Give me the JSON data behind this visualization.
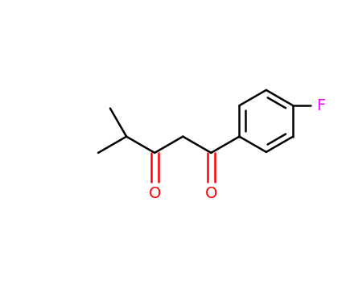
{
  "background_color": "#ffffff",
  "bond_color": "#000000",
  "oxygen_color": "#ff0000",
  "fluorine_color": "#ff00ff",
  "bond_width": 1.8,
  "font_size_atoms": 14,
  "fig_width": 4.3,
  "fig_height": 3.74,
  "dpi": 100,
  "xlim": [
    -1.6,
    2.8
  ],
  "ylim": [
    -1.3,
    1.7
  ]
}
